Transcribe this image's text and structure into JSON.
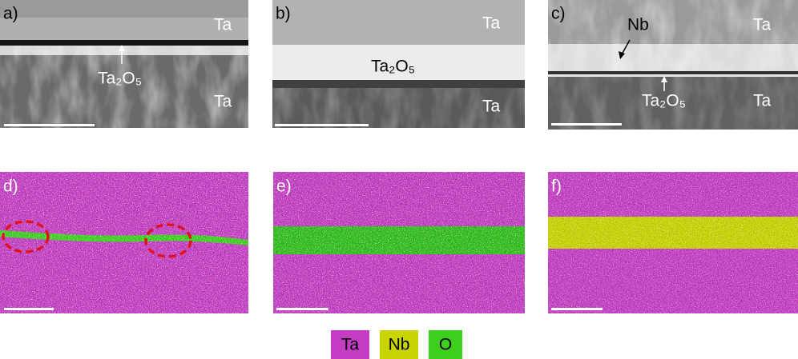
{
  "panels": [
    {
      "label": "a)",
      "annotations": [
        "Ta",
        "Ta₂O₅",
        "Ta"
      ]
    },
    {
      "label": "b)",
      "annotations": [
        "Ta",
        "Ta₂O₅",
        "Ta"
      ]
    },
    {
      "label": "c)",
      "annotations": [
        "Nb",
        "Ta",
        "Ta₂O₅",
        "Ta"
      ]
    },
    {
      "label": "d)"
    },
    {
      "label": "e)"
    },
    {
      "label": "f)"
    }
  ],
  "legend": [
    {
      "name": "Ta",
      "color": "#c43cc4"
    },
    {
      "name": "Nb",
      "color": "#c8d400"
    },
    {
      "name": "O",
      "color": "#3ccf1e"
    }
  ]
}
